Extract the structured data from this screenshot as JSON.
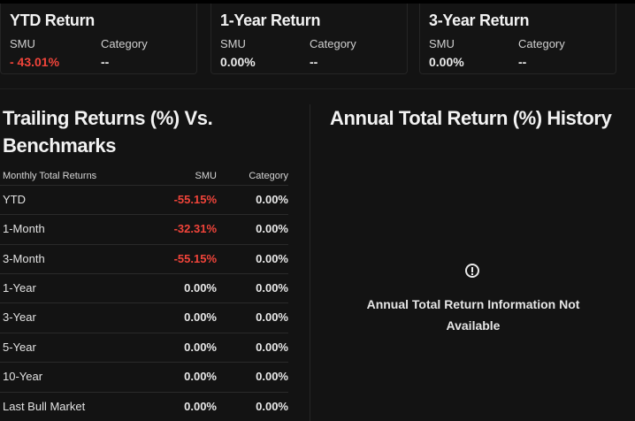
{
  "summary_cards": [
    {
      "title": "YTD Return",
      "col1_label": "SMU",
      "col1_value": "- 43.01%",
      "col2_label": "Category",
      "col2_value": "--"
    },
    {
      "title": "1-Year Return",
      "col1_label": "SMU",
      "col1_value": "0.00%",
      "col2_label": "Category",
      "col2_value": "--"
    },
    {
      "title": "3-Year Return",
      "col1_label": "SMU",
      "col1_value": "0.00%",
      "col2_label": "Category",
      "col2_value": "--"
    }
  ],
  "trailing": {
    "title_line1": "Trailing Returns (%) Vs.",
    "title_line2": "Benchmarks",
    "headers": {
      "label": "Monthly Total Returns",
      "smu": "SMU",
      "category": "Category"
    },
    "rows": [
      {
        "label": "YTD",
        "smu": "-55.15%",
        "category": "0.00%"
      },
      {
        "label": "1-Month",
        "smu": "-32.31%",
        "category": "0.00%"
      },
      {
        "label": "3-Month",
        "smu": "-55.15%",
        "category": "0.00%"
      },
      {
        "label": "1-Year",
        "smu": "0.00%",
        "category": "0.00%"
      },
      {
        "label": "3-Year",
        "smu": "0.00%",
        "category": "0.00%"
      },
      {
        "label": "5-Year",
        "smu": "0.00%",
        "category": "0.00%"
      },
      {
        "label": "10-Year",
        "smu": "0.00%",
        "category": "0.00%"
      },
      {
        "label": "Last Bull Market",
        "smu": "0.00%",
        "category": "0.00%"
      }
    ]
  },
  "annual": {
    "title": "Annual Total Return (%) History",
    "message_line1": "Annual Total Return Information Not",
    "message_line2": "Available",
    "icon": "alert-circle-icon"
  },
  "colors": {
    "negative": "#f0443a",
    "background": "#131313"
  }
}
